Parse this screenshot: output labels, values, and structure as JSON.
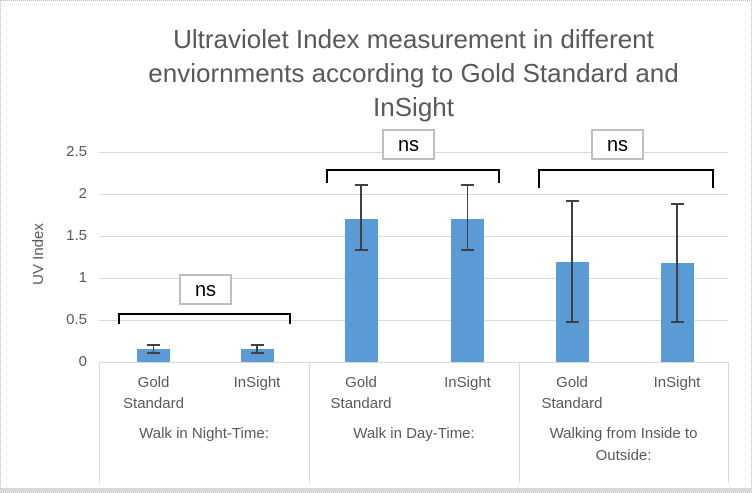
{
  "title": {
    "lines": [
      "Ultraviolet Index measurement in different",
      "enviornments according to Gold Standard and",
      "InSight"
    ]
  },
  "chart_data": {
    "type": "bar",
    "title": "Ultraviolet Index measurement in different enviornments according to Gold Standard and InSight",
    "xlabel": "",
    "ylabel": "UV Index",
    "ylim": [
      0,
      2.5
    ],
    "yticks": [
      0,
      0.5,
      1,
      1.5,
      2,
      2.5
    ],
    "grid": true,
    "legend_position": "none",
    "bar_color": "#5B9BD5",
    "error_bar_color": "#404040",
    "categories": [
      "Walk in Night-Time:",
      "Walk in Day-Time:",
      "Walking from Inside to Outside:"
    ],
    "series": [
      {
        "name": "Gold Standard",
        "values": [
          0.15,
          1.7,
          1.19
        ],
        "error_low": [
          0.09,
          1.32,
          0.46
        ],
        "error_high": [
          0.21,
          2.11,
          1.92
        ]
      },
      {
        "name": "InSight",
        "values": [
          0.15,
          1.7,
          1.17
        ],
        "error_low": [
          0.09,
          1.32,
          0.46
        ],
        "error_high": [
          0.21,
          2.11,
          1.89
        ]
      }
    ],
    "annotations": [
      {
        "category": "Walk in Night-Time:",
        "label": "ns"
      },
      {
        "category": "Walk in Day-Time:",
        "label": "ns"
      },
      {
        "category": "Walking from Inside to Outside:",
        "label": "ns"
      }
    ]
  },
  "colors": {
    "axis_text": "#595959",
    "gridline": "#D9D9D9",
    "bar": "#5B9BD5",
    "error_bar": "#404040",
    "bracket": "#000000",
    "ns_box_border": "#BFBFBF",
    "title_text": "#595959"
  }
}
